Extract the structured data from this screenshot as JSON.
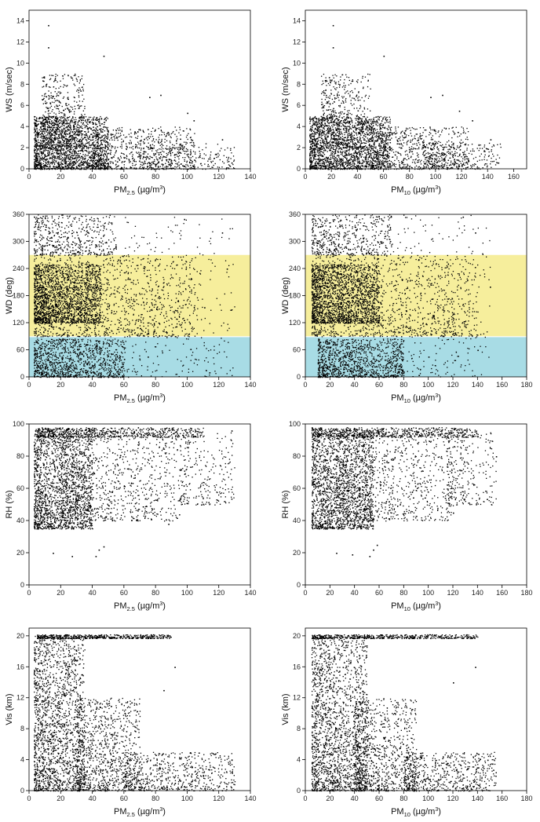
{
  "figure": {
    "panel_grid": "4 rows x 2 columns"
  },
  "chart_data": [
    {
      "id": "ws-pm25",
      "type": "scatter",
      "xlabel": {
        "pre": "PM",
        "sub": "2.5",
        "mid": " (µg/m",
        "sup": "3",
        "post": ")"
      },
      "ylabel": "WS (m/sec)",
      "xlim": [
        0,
        140
      ],
      "ylim": [
        0,
        15
      ],
      "xticks": [
        0,
        20,
        40,
        60,
        80,
        100,
        120,
        140
      ],
      "yticks": [
        0,
        2,
        4,
        6,
        8,
        10,
        12,
        14
      ],
      "bands": [],
      "density_clusters": [
        {
          "x": [
            3,
            50
          ],
          "y": [
            0,
            5
          ],
          "n": 1900
        },
        {
          "x": [
            8,
            35
          ],
          "y": [
            2,
            9
          ],
          "n": 500
        },
        {
          "x": [
            40,
            105
          ],
          "y": [
            0,
            4
          ],
          "n": 700
        },
        {
          "x": [
            70,
            130
          ],
          "y": [
            0,
            2.5
          ],
          "n": 250
        }
      ],
      "points": [
        [
          12,
          13.6
        ],
        [
          12,
          11.5
        ],
        [
          47,
          10.7
        ],
        [
          76,
          6.8
        ],
        [
          83,
          7.0
        ],
        [
          100,
          5.3
        ],
        [
          104,
          4.6
        ],
        [
          122,
          2.8
        ],
        [
          128,
          0.6
        ]
      ]
    },
    {
      "id": "ws-pm10",
      "type": "scatter",
      "xlabel": {
        "pre": "PM",
        "sub": "10",
        "mid": " (µg/m",
        "sup": "3",
        "post": ")"
      },
      "ylabel": "WS (m/sec)",
      "xlim": [
        0,
        170
      ],
      "ylim": [
        0,
        15
      ],
      "xticks": [
        0,
        20,
        40,
        60,
        80,
        100,
        120,
        140,
        160
      ],
      "yticks": [
        0,
        2,
        4,
        6,
        8,
        10,
        12,
        14
      ],
      "bands": [],
      "density_clusters": [
        {
          "x": [
            3,
            65
          ],
          "y": [
            0,
            5
          ],
          "n": 1900
        },
        {
          "x": [
            12,
            50
          ],
          "y": [
            2,
            9
          ],
          "n": 500
        },
        {
          "x": [
            50,
            125
          ],
          "y": [
            0,
            4
          ],
          "n": 700
        },
        {
          "x": [
            90,
            150
          ],
          "y": [
            0,
            2.5
          ],
          "n": 250
        }
      ],
      "points": [
        [
          21,
          13.6
        ],
        [
          21,
          11.5
        ],
        [
          60,
          10.7
        ],
        [
          96,
          6.8
        ],
        [
          105,
          7.0
        ],
        [
          118,
          5.5
        ],
        [
          128,
          4.6
        ],
        [
          142,
          2.8
        ],
        [
          148,
          0.6
        ]
      ]
    },
    {
      "id": "wd-pm25",
      "type": "scatter",
      "xlabel": {
        "pre": "PM",
        "sub": "2.5",
        "mid": " (µg/m",
        "sup": "3",
        "post": ")"
      },
      "ylabel": "WD (deg)",
      "xlim": [
        0,
        140
      ],
      "ylim": [
        0,
        360
      ],
      "xticks": [
        0,
        20,
        40,
        60,
        80,
        100,
        120,
        140
      ],
      "yticks": [
        0,
        60,
        120,
        180,
        240,
        300,
        360
      ],
      "bands": [
        {
          "y": [
            90,
            270
          ],
          "color": "#f6ee9c"
        },
        {
          "y": [
            0,
            88
          ],
          "color": "#a8dce5"
        }
      ],
      "density_clusters": [
        {
          "x": [
            3,
            45
          ],
          "y": [
            120,
            250
          ],
          "n": 1700
        },
        {
          "x": [
            3,
            105
          ],
          "y": [
            90,
            270
          ],
          "n": 1100
        },
        {
          "x": [
            3,
            60
          ],
          "y": [
            0,
            85
          ],
          "n": 1100
        },
        {
          "x": [
            3,
            55
          ],
          "y": [
            270,
            360
          ],
          "n": 500
        },
        {
          "x": [
            60,
            130
          ],
          "y": [
            0,
            360
          ],
          "n": 300
        }
      ],
      "points": [
        [
          98,
          350
        ],
        [
          122,
          320
        ],
        [
          125,
          240
        ],
        [
          102,
          62
        ],
        [
          75,
          45
        ],
        [
          60,
          40
        ]
      ]
    },
    {
      "id": "wd-pm10",
      "type": "scatter",
      "xlabel": {
        "pre": "PM",
        "sub": "10",
        "mid": " (µg/m",
        "sup": "3",
        "post": ")"
      },
      "ylabel": "WD (deg)",
      "xlim": [
        0,
        180
      ],
      "ylim": [
        0,
        360
      ],
      "xticks": [
        0,
        20,
        40,
        60,
        80,
        100,
        120,
        140,
        160,
        180
      ],
      "yticks": [
        0,
        60,
        120,
        180,
        240,
        300,
        360
      ],
      "bands": [
        {
          "y": [
            90,
            270
          ],
          "color": "#f6ee9c"
        },
        {
          "y": [
            0,
            88
          ],
          "color": "#a8dce5"
        }
      ],
      "density_clusters": [
        {
          "x": [
            5,
            60
          ],
          "y": [
            120,
            250
          ],
          "n": 1700
        },
        {
          "x": [
            5,
            140
          ],
          "y": [
            90,
            270
          ],
          "n": 1100
        },
        {
          "x": [
            10,
            80
          ],
          "y": [
            0,
            85
          ],
          "n": 1100
        },
        {
          "x": [
            5,
            70
          ],
          "y": [
            270,
            360
          ],
          "n": 500
        },
        {
          "x": [
            70,
            150
          ],
          "y": [
            0,
            360
          ],
          "n": 300
        }
      ],
      "points": [
        [
          128,
          355
        ],
        [
          138,
          320
        ],
        [
          150,
          200
        ],
        [
          140,
          60
        ],
        [
          100,
          45
        ],
        [
          78,
          40
        ]
      ]
    },
    {
      "id": "rh-pm25",
      "type": "scatter",
      "xlabel": {
        "pre": "PM",
        "sub": "2.5",
        "mid": " (µg/m",
        "sup": "3",
        "post": ")"
      },
      "ylabel": "RH (%)",
      "xlim": [
        0,
        140
      ],
      "ylim": [
        0,
        100
      ],
      "xticks": [
        0,
        20,
        40,
        60,
        80,
        100,
        120,
        140
      ],
      "yticks": [
        0,
        20,
        40,
        60,
        80,
        100
      ],
      "bands": [],
      "density_clusters": [
        {
          "x": [
            3,
            40
          ],
          "y": [
            35,
            97
          ],
          "n": 1700
        },
        {
          "x": [
            5,
            110
          ],
          "y": [
            92,
            98
          ],
          "n": 600
        },
        {
          "x": [
            20,
            95
          ],
          "y": [
            40,
            95
          ],
          "n": 900
        },
        {
          "x": [
            95,
            130
          ],
          "y": [
            50,
            95
          ],
          "n": 250
        }
      ],
      "points": [
        [
          15,
          20
        ],
        [
          27,
          18
        ],
        [
          42,
          18
        ],
        [
          44,
          22
        ],
        [
          47,
          24
        ],
        [
          88,
          38
        ],
        [
          128,
          96
        ]
      ]
    },
    {
      "id": "rh-pm10",
      "type": "scatter",
      "xlabel": {
        "pre": "PM",
        "sub": "10",
        "mid": " (µg/m",
        "sup": "3",
        "post": ")"
      },
      "ylabel": "RH (%)",
      "xlim": [
        0,
        180
      ],
      "ylim": [
        0,
        100
      ],
      "xticks": [
        0,
        20,
        40,
        60,
        80,
        100,
        120,
        140,
        160,
        180
      ],
      "yticks": [
        0,
        20,
        40,
        60,
        80,
        100
      ],
      "bands": [],
      "density_clusters": [
        {
          "x": [
            5,
            55
          ],
          "y": [
            35,
            97
          ],
          "n": 1700
        },
        {
          "x": [
            5,
            140
          ],
          "y": [
            92,
            98
          ],
          "n": 600
        },
        {
          "x": [
            25,
            120
          ],
          "y": [
            40,
            95
          ],
          "n": 900
        },
        {
          "x": [
            115,
            155
          ],
          "y": [
            50,
            95
          ],
          "n": 250
        }
      ],
      "points": [
        [
          25,
          20
        ],
        [
          38,
          19
        ],
        [
          52,
          18
        ],
        [
          55,
          22
        ],
        [
          58,
          25
        ],
        [
          120,
          45
        ],
        [
          155,
          80
        ]
      ]
    },
    {
      "id": "vis-pm25",
      "type": "scatter",
      "xlabel": {
        "pre": "PM",
        "sub": "2.5",
        "mid": " (µg/m",
        "sup": "3",
        "post": ")"
      },
      "ylabel": "Vis (km)",
      "xlim": [
        0,
        140
      ],
      "ylim": [
        0,
        21
      ],
      "xticks": [
        0,
        20,
        40,
        60,
        80,
        100,
        120,
        140
      ],
      "yticks": [
        0,
        4,
        8,
        12,
        16,
        20
      ],
      "bands": [],
      "density_clusters": [
        {
          "x": [
            3,
            35
          ],
          "y": [
            0,
            20
          ],
          "n": 1800
        },
        {
          "x": [
            5,
            90
          ],
          "y": [
            19.7,
            20.2
          ],
          "n": 500
        },
        {
          "x": [
            30,
            70
          ],
          "y": [
            0,
            12
          ],
          "n": 900
        },
        {
          "x": [
            60,
            130
          ],
          "y": [
            0,
            5
          ],
          "n": 600
        }
      ],
      "points": [
        [
          85,
          13
        ],
        [
          92,
          16
        ],
        [
          100,
          2
        ],
        [
          120,
          0.6
        ],
        [
          126,
          3.5
        ],
        [
          128,
          4
        ]
      ]
    },
    {
      "id": "vis-pm10",
      "type": "scatter",
      "xlabel": {
        "pre": "PM",
        "sub": "10",
        "mid": " (µg/m",
        "sup": "3",
        "post": ")"
      },
      "ylabel": "Vis (km)",
      "xlim": [
        0,
        180
      ],
      "ylim": [
        0,
        21
      ],
      "xticks": [
        0,
        20,
        40,
        60,
        80,
        100,
        120,
        140,
        160,
        180
      ],
      "yticks": [
        0,
        4,
        8,
        12,
        16,
        20
      ],
      "bands": [],
      "density_clusters": [
        {
          "x": [
            5,
            50
          ],
          "y": [
            0,
            20
          ],
          "n": 1800
        },
        {
          "x": [
            5,
            140
          ],
          "y": [
            19.7,
            20.2
          ],
          "n": 500
        },
        {
          "x": [
            40,
            90
          ],
          "y": [
            0,
            12
          ],
          "n": 900
        },
        {
          "x": [
            80,
            155
          ],
          "y": [
            0,
            5
          ],
          "n": 600
        }
      ],
      "points": [
        [
          120,
          14
        ],
        [
          138,
          16
        ],
        [
          140,
          3
        ],
        [
          148,
          4
        ],
        [
          152,
          3.5
        ]
      ]
    }
  ]
}
